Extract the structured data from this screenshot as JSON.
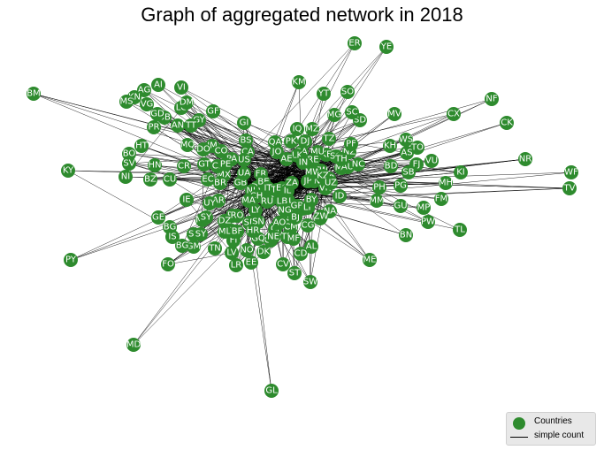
{
  "title": "Graph of aggregated network in 2018",
  "legend": {
    "nodes_label": "Countries",
    "edges_label": "simple count"
  },
  "colors": {
    "node": "#2e8b2e",
    "edge": "#000000",
    "node_text": "#ffffff",
    "legend_bg": "#e8e8e8"
  },
  "nodes": [
    "ER",
    "YE",
    "BM",
    "AI",
    "AG",
    "KM",
    "YT",
    "SO",
    "VI",
    "KN",
    "MS",
    "VG",
    "LC",
    "DM",
    "GF",
    "GY",
    "MV",
    "CX",
    "NF",
    "SD",
    "SC",
    "MG",
    "BB",
    "AN",
    "GI",
    "MZ",
    "IQ",
    "CK",
    "TT",
    "GD",
    "PR",
    "BS",
    "PK",
    "DJ",
    "TZ",
    "HT",
    "JM",
    "DO",
    "MQ",
    "QA",
    "JO",
    "SA",
    "KE",
    "MU",
    "WS",
    "TO",
    "CO",
    "PA",
    "CA",
    "US",
    "RE",
    "LK",
    "AE",
    "IN",
    "KH",
    "NZ",
    "AS",
    "PF",
    "MY",
    "SG",
    "FJ",
    "AU",
    "BD",
    "VU",
    "TH",
    "NC",
    "HK",
    "TW",
    "PH",
    "PG",
    "ID",
    "KI",
    "NR",
    "WF",
    "MH",
    "FM",
    "TV",
    "MP",
    "GU",
    "PW",
    "SB",
    "MM",
    "VN",
    "CN",
    "KR",
    "JP",
    "KY",
    "BO",
    "CR",
    "GT",
    "SV",
    "HN",
    "NI",
    "MX",
    "BZ",
    "CU",
    "EC",
    "BR",
    "AR",
    "CL",
    "PE",
    "IE",
    "UY",
    "PY",
    "GB",
    "FR",
    "DE",
    "NL",
    "BE",
    "ES",
    "IT",
    "CH",
    "AT",
    "DK",
    "SE",
    "NO",
    "FI",
    "PL",
    "RU",
    "TR",
    "EG",
    "IL",
    "LB",
    "MA",
    "LY",
    "TN",
    "SN",
    "CI",
    "GH",
    "NG",
    "CM",
    "GA",
    "CG",
    "AO",
    "ZA",
    "NA",
    "BW",
    "SL",
    "GN",
    "GM",
    "LR",
    "CV",
    "ST",
    "SW",
    "GQ",
    "BJ",
    "TG",
    "ML",
    "BF",
    "NE",
    "TD",
    "MR",
    "GR",
    "PT",
    "HR",
    "RO",
    "BG",
    "UA",
    "SY",
    "DZ",
    "GE",
    "BG2",
    "IS",
    "FO",
    "GL",
    "MD",
    "MF",
    "BN",
    "TL",
    "ME",
    "AL",
    "CD",
    "SY2",
    "LT",
    "LV",
    "EE",
    "BY",
    "ZW",
    "MW",
    "KZ",
    "UZ"
  ]
}
